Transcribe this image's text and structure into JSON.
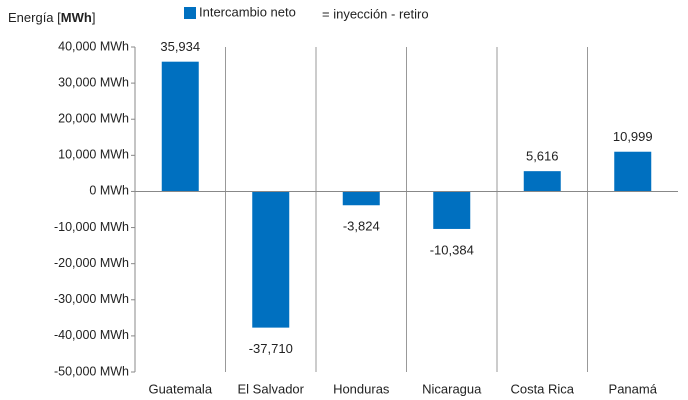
{
  "chart_data": {
    "type": "bar",
    "y_label": [
      "Energía [",
      "MWh",
      "]"
    ],
    "annotation": "= inyección - retiro",
    "categories": [
      "Guatemala",
      "El Salvador",
      "Honduras",
      "Nicaragua",
      "Costa Rica",
      "Panamá"
    ],
    "series": [
      {
        "name": "Intercambio neto",
        "color": "#0070c0",
        "values": [
          35934,
          -37710,
          -3824,
          -10384,
          5616,
          10999
        ],
        "value_labels": [
          "35,934",
          "-37,710",
          "-3,824",
          "-10,384",
          "5,616",
          "10,999"
        ]
      }
    ],
    "ylim": [
      -50000,
      40000
    ],
    "yticks": [
      {
        "value": -50000,
        "label": "-50,000 MWh"
      },
      {
        "value": -40000,
        "label": "-40,000 MWh"
      },
      {
        "value": -30000,
        "label": "-30,000 MWh"
      },
      {
        "value": -20000,
        "label": "-20,000 MWh"
      },
      {
        "value": -10000,
        "label": "-10,000 MWh"
      },
      {
        "value": 0,
        "label": "0 MWh"
      },
      {
        "value": 10000,
        "label": "10,000 MWh"
      },
      {
        "value": 20000,
        "label": "20,000 MWh"
      },
      {
        "value": 30000,
        "label": "30,000 MWh"
      },
      {
        "value": 40000,
        "label": "40,000 MWh"
      }
    ],
    "legend": "top"
  }
}
